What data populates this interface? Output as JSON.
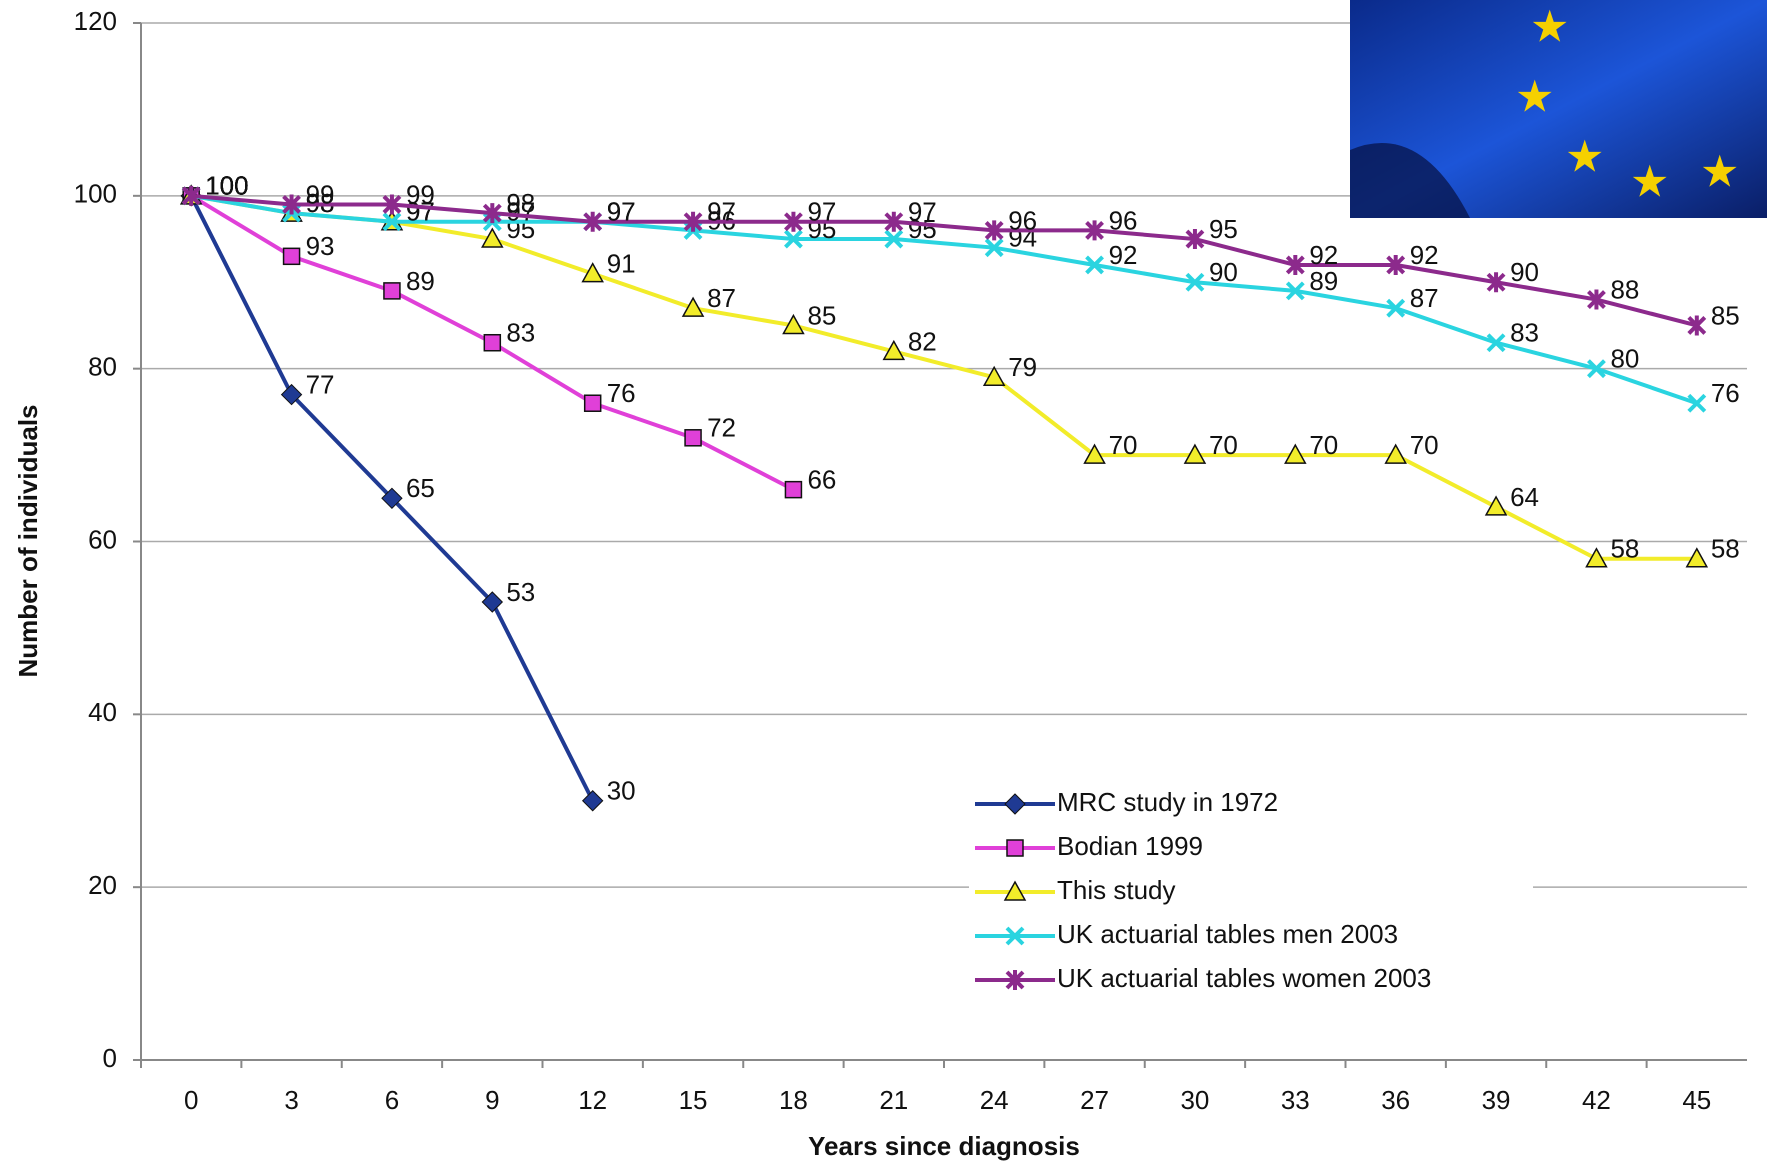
{
  "chart_data": {
    "type": "line",
    "x_label": "Years since diagnosis",
    "y_label": "Number of individuals",
    "categories": [
      0,
      3,
      6,
      9,
      12,
      15,
      18,
      21,
      24,
      27,
      30,
      33,
      36,
      39,
      42,
      45
    ],
    "ylim": [
      0,
      120
    ],
    "yticks": [
      0,
      20,
      40,
      60,
      80,
      100,
      120
    ],
    "grid": true,
    "series": [
      {
        "name": "MRC study in 1972",
        "color": "#1f3a93",
        "values": [
          100,
          77,
          65,
          53,
          30,
          null,
          null,
          null,
          null,
          null,
          null,
          null,
          null,
          null,
          null,
          null
        ]
      },
      {
        "name": "Bodian 1999",
        "color": "#e040d8",
        "values": [
          100,
          93,
          89,
          83,
          76,
          72,
          66,
          null,
          null,
          null,
          null,
          null,
          null,
          null,
          null,
          null
        ]
      },
      {
        "name": "This study",
        "color": "#f2ec2a",
        "values": [
          100,
          98,
          97,
          95,
          91,
          87,
          85,
          82,
          79,
          70,
          70,
          70,
          70,
          64,
          58,
          58
        ]
      },
      {
        "name": "UK actuarial tables men 2003",
        "color": "#2ad4e0",
        "values": [
          100,
          98,
          97,
          97,
          97,
          96,
          95,
          95,
          94,
          92,
          90,
          89,
          87,
          83,
          80,
          76
        ]
      },
      {
        "name": "UK actuarial tables women 2003",
        "color": "#8c2a8c",
        "values": [
          100,
          99,
          99,
          98,
          97,
          97,
          97,
          97,
          96,
          96,
          95,
          92,
          92,
          90,
          88,
          85
        ]
      }
    ]
  }
}
